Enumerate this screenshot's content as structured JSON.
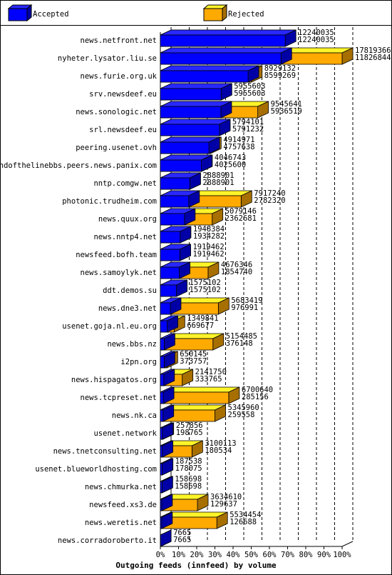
{
  "chart_data": {
    "type": "bar3d",
    "title": "Outgoing feeds (innfeed) by volume",
    "legend": [
      {
        "name": "Accepted",
        "color": "#0000ff"
      },
      {
        "name": "Rejected",
        "color": "#ffaa00"
      }
    ],
    "categories": [
      "news.netfront.net",
      "nyheter.lysator.liu.se",
      "news.furie.org.uk",
      "srv.newsdeef.eu",
      "news.sonologic.net",
      "srl.newsdeef.eu",
      "peering.usenet.ovh",
      "endofthelinebbs.peers.news.panix.com",
      "nntp.comgw.net",
      "photonic.trudheim.com",
      "news.quux.org",
      "news.nntp4.net",
      "newsfeed.bofh.team",
      "news.samoylyk.net",
      "ddt.demos.su",
      "news.dne3.net",
      "usenet.goja.nl.eu.org",
      "news.bbs.nz",
      "i2pn.org",
      "news.hispagatos.org",
      "news.tcpreset.net",
      "news.nk.ca",
      "usenet.network",
      "news.tnetconsulting.net",
      "usenet.blueworldhosting.com",
      "news.chmurka.net",
      "newsfeed.xs3.de",
      "news.weretis.net",
      "news.corradoroberto.it"
    ],
    "totals": [
      12240035,
      17819366,
      8929132,
      5955603,
      9545641,
      5794101,
      4914971,
      4046743,
      2888901,
      7917240,
      5079146,
      1948384,
      1919462,
      4676346,
      1575102,
      5683419,
      1349841,
      5154485,
      650145,
      2141750,
      6700640,
      5345960,
      257856,
      3100113,
      187538,
      158698,
      3634610,
      5534454,
      7665
    ],
    "accepted": [
      12240035,
      11826844,
      8599269,
      5955603,
      5936519,
      5791232,
      4757638,
      4025600,
      2888901,
      2782320,
      2362681,
      1934282,
      1919462,
      1854740,
      1575102,
      976991,
      669677,
      376148,
      373757,
      333765,
      285156,
      259558,
      198765,
      180534,
      178075,
      158698,
      129637,
      126688,
      7665
    ],
    "xlim": [
      0,
      17819366
    ],
    "xticks": [
      {
        "value": 0,
        "label": "0%"
      },
      {
        "value": 1781936.6,
        "label": "10%"
      },
      {
        "value": 3563873.2,
        "label": "20%"
      },
      {
        "value": 5345809.8,
        "label": "30%"
      },
      {
        "value": 7127746.4,
        "label": "40%"
      },
      {
        "value": 8909683,
        "label": "50%"
      },
      {
        "value": 10691619.6,
        "label": "60%"
      },
      {
        "value": 12473556.2,
        "label": "70%"
      },
      {
        "value": 14255492.8,
        "label": "80%"
      },
      {
        "value": 16037429.4,
        "label": "90%"
      },
      {
        "value": 17819366,
        "label": "100%"
      }
    ],
    "grid": true
  }
}
